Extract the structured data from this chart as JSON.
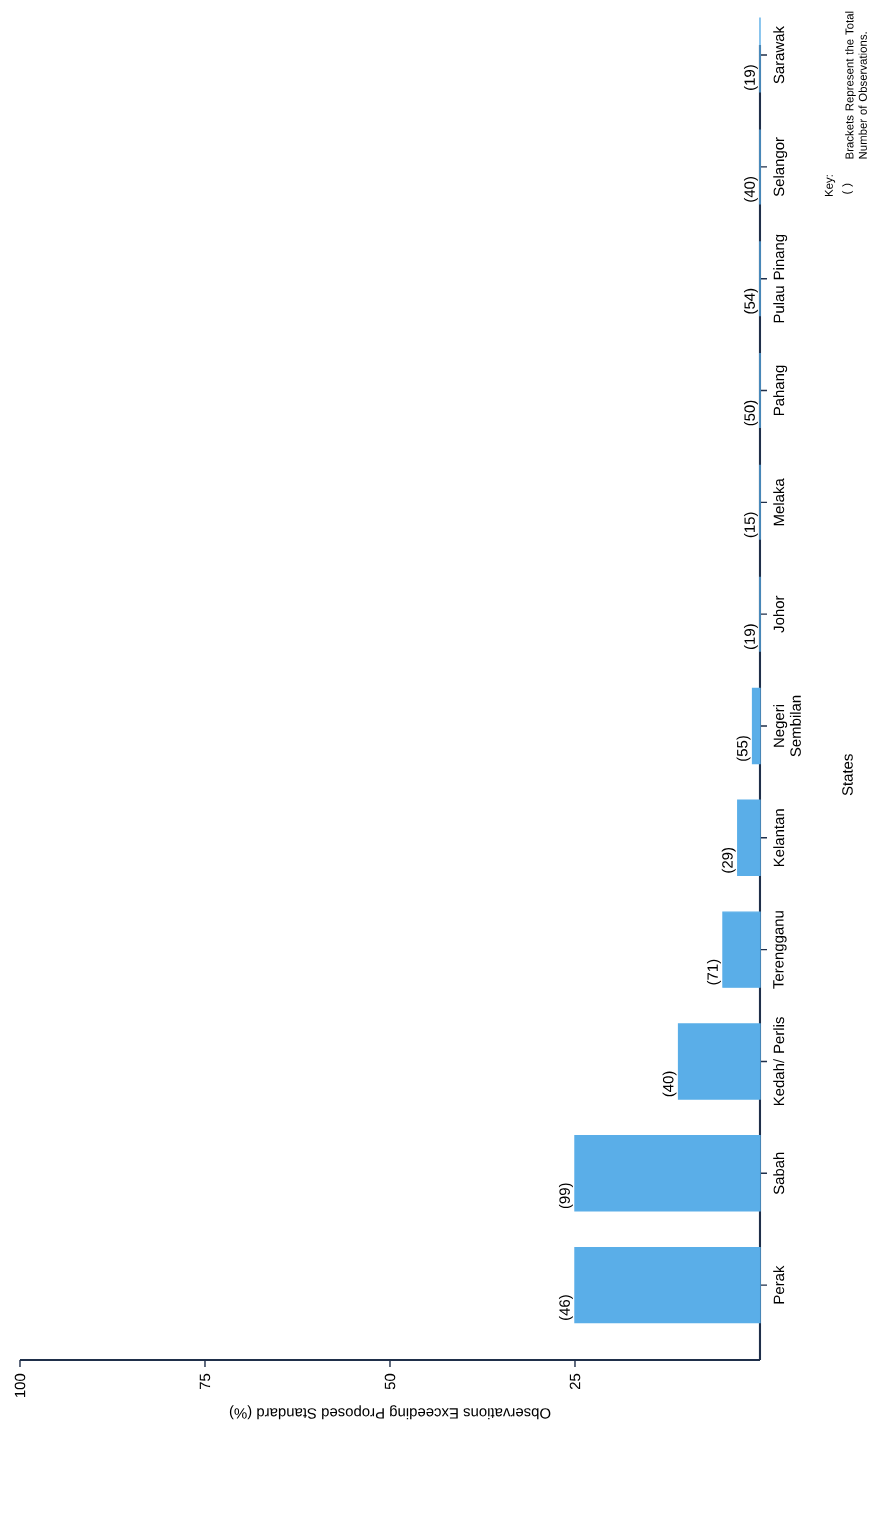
{
  "chart_data": {
    "type": "bar",
    "orientation": "horizontal",
    "xlabel": "Observations Exceeding Proposed Standard (%)",
    "ylabel": "States",
    "categories": [
      "Sarawak",
      "Selangor",
      "Pulau Pinang",
      "Pahang",
      "Melaka",
      "Johor",
      "Negeri Sembilan",
      "Kelantan",
      "Terengganu",
      "Kedah/ Perlis",
      "Sabah",
      "Perak"
    ],
    "values": [
      0,
      0,
      0,
      0,
      0,
      0,
      1,
      3,
      5,
      11,
      25,
      25
    ],
    "color": "#5aaee8",
    "xlim": [
      100,
      0
    ],
    "xticks": [
      100,
      75,
      50,
      25
    ],
    "annotations": [
      {
        "text": "(19)",
        "x": 0,
        "y": "Sarawak"
      },
      {
        "text": "(40)",
        "x": 0,
        "y": "Selangor"
      },
      {
        "text": "(54)",
        "x": 0,
        "y": "Pulau Pinang"
      },
      {
        "text": "(50)",
        "x": 0,
        "y": "Pahang"
      },
      {
        "text": "(15)",
        "x": 0,
        "y": "Melaka"
      },
      {
        "text": "(19)",
        "x": 0,
        "y": "Johor"
      },
      {
        "text": "(55)",
        "x": 1,
        "y": "Negeri Sembilan"
      },
      {
        "text": "(29)",
        "x": 3,
        "y": "Kelantan"
      },
      {
        "text": "(71)",
        "x": 5,
        "y": "Terengganu"
      },
      {
        "text": "(40)",
        "x": 11,
        "y": "Kedah/ Perlis"
      },
      {
        "text": "(99)",
        "x": 25,
        "y": "Sabah"
      },
      {
        "text": "(46)",
        "x": 25,
        "y": "Perak"
      },
      "Key:",
      "( )",
      "Brackets Represent the Total Number of Observations."
    ]
  }
}
